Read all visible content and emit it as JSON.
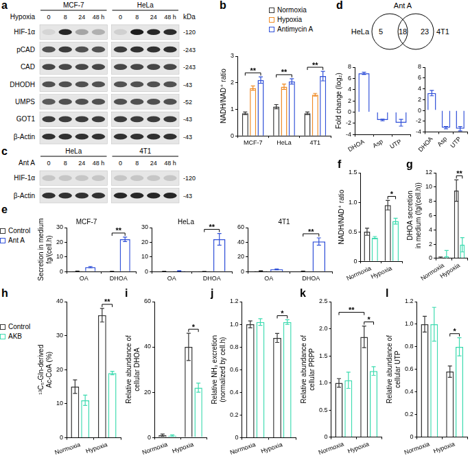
{
  "blots": [
    {
      "panel": "a",
      "condition": "Hypoxia",
      "unit": "kDa",
      "groups": [
        {
          "label": "MCF-7",
          "lanes": [
            "0",
            "8",
            "24",
            "48 h"
          ]
        },
        {
          "label": "HeLa",
          "lanes": [
            "0",
            "8",
            "24",
            "48 h"
          ]
        }
      ],
      "rows": [
        {
          "protein": "HIF-1α",
          "kda": "-120",
          "bands": [
            [
              0.08,
              0.9,
              0.3,
              0.25
            ],
            [
              0.1,
              0.95,
              0.9,
              0.88
            ]
          ]
        },
        {
          "protein": "pCAD",
          "kda": "-243",
          "bands": [
            [
              0.7,
              0.8,
              0.7,
              0.7
            ],
            [
              0.8,
              0.85,
              0.85,
              0.85
            ]
          ]
        },
        {
          "protein": "CAD",
          "kda": "-243",
          "bands": [
            [
              0.75,
              0.75,
              0.75,
              0.75
            ],
            [
              0.75,
              0.75,
              0.75,
              0.75
            ]
          ]
        },
        {
          "protein": "DHODH",
          "kda": "-43",
          "bands": [
            [
              0.7,
              0.7,
              0.7,
              0.7
            ],
            [
              0.7,
              0.7,
              0.7,
              0.7
            ]
          ]
        },
        {
          "protein": "UMPS",
          "kda": "-52",
          "bands": [
            [
              0.65,
              0.7,
              0.7,
              0.7
            ],
            [
              0.7,
              0.7,
              0.7,
              0.7
            ]
          ]
        },
        {
          "protein": "GOT1",
          "kda": "-43",
          "bands": [
            [
              0.8,
              0.8,
              0.8,
              0.8
            ],
            [
              0.8,
              0.8,
              0.8,
              0.8
            ]
          ]
        },
        {
          "protein": "β-Actin",
          "kda": "-43",
          "bands": [
            [
              0.85,
              0.85,
              0.85,
              0.85
            ],
            [
              0.85,
              0.85,
              0.85,
              0.85
            ]
          ]
        }
      ]
    },
    {
      "panel": "c",
      "condition": "Ant A",
      "groups": [
        {
          "label": "HeLa",
          "lanes": [
            "0",
            "8",
            "24",
            "48 h"
          ]
        },
        {
          "label": "4T1",
          "lanes": [
            "0",
            "8",
            "24",
            "48 h"
          ]
        }
      ],
      "rows": [
        {
          "protein": "HIF-1α",
          "kda": "-120",
          "bands": [
            [
              0.15,
              0.15,
              0.15,
              0.15
            ],
            [
              0.15,
              0.15,
              0.15,
              0.15
            ]
          ]
        },
        {
          "protein": "β-Actin",
          "kda": "-43",
          "bands": [
            [
              0.85,
              0.85,
              0.85,
              0.85
            ],
            [
              0.9,
              0.9,
              0.9,
              0.9
            ]
          ]
        }
      ]
    }
  ],
  "venn": {
    "panel": "d",
    "title": "Ant A",
    "left_label": "HeLa",
    "right_label": "4T1",
    "left_only": 5,
    "both": 18,
    "right_only": 23
  },
  "chart_data": [
    {
      "panel": "b",
      "type": "bar",
      "categories": [
        "MCF-7",
        "HeLa",
        "4T1"
      ],
      "y_label": "NADH/NAD⁺ ratio",
      "ylim": [
        0,
        3
      ],
      "yticks": [
        0,
        1,
        2,
        3
      ],
      "grid": false,
      "legend": "top",
      "series": [
        {
          "name": "Normoxia",
          "color": "#333333",
          "values": [
            0.85,
            1.1,
            0.85
          ],
          "errors": [
            0.05,
            0.08,
            0.05
          ]
        },
        {
          "name": "Hypoxia",
          "color": "#f08a24",
          "values": [
            1.8,
            1.85,
            1.55
          ],
          "errors": [
            0.08,
            0.1,
            0.05
          ]
        },
        {
          "name": "Antimycin A",
          "color": "#2f4fd8",
          "values": [
            2.1,
            2.05,
            2.25
          ],
          "errors": [
            0.12,
            0.1,
            0.18
          ]
        }
      ],
      "annotations": [
        {
          "text": "**",
          "category": "MCF-7"
        },
        {
          "text": "**",
          "category": "HeLa"
        },
        {
          "text": "**",
          "category": "4T1"
        }
      ]
    },
    {
      "type": "bar",
      "categories": [
        "DHOA",
        "Asp",
        "UTP"
      ],
      "y_label": "Fold change (log₂)",
      "ylim": [
        -4,
        8
      ],
      "yticks": [
        -4,
        -2,
        0,
        2,
        4,
        6,
        8
      ],
      "grid": false,
      "series": [
        {
          "name": "Ant A",
          "color": "#2f4fd8",
          "values": [
            6.9,
            -1.4,
            -1.9
          ],
          "errors": [
            0.2,
            0.15,
            0.6
          ]
        }
      ]
    },
    {
      "type": "bar",
      "categories": [
        "DHOA",
        "Asp",
        "UTP"
      ],
      "ylim": [
        -4,
        8
      ],
      "yticks": [
        -4,
        -2,
        0,
        2,
        4,
        6,
        8
      ],
      "grid": false,
      "series": [
        {
          "name": "Ant A",
          "color": "#2f4fd8",
          "values": [
            3.2,
            -3.2,
            -3.4
          ],
          "errors": [
            0.5,
            0.2,
            0.4
          ]
        }
      ]
    },
    {
      "panel": "e",
      "type": "bar",
      "title": "MCF-7",
      "categories": [
        "OA",
        "DHOA"
      ],
      "y_label": [
        "Secretion in medium",
        "fg/(cell.h)"
      ],
      "ylim": [
        0,
        30
      ],
      "yticks": [
        0,
        10,
        20,
        30
      ],
      "grid": false,
      "legend": "left",
      "series": [
        {
          "name": "Control",
          "color": "#333333",
          "values": [
            0.3,
            0.2
          ],
          "errors": [
            0.1,
            0.1
          ]
        },
        {
          "name": "Ant A",
          "color": "#2f4fd8",
          "values": [
            3,
            22
          ],
          "errors": [
            0.4,
            1.5
          ]
        }
      ],
      "annotations": [
        {
          "text": "**",
          "category": "DHOA"
        }
      ]
    },
    {
      "type": "bar",
      "title": "HeLa",
      "categories": [
        "OA",
        "DHOA"
      ],
      "ylim": [
        0,
        30
      ],
      "yticks": [
        0,
        10,
        20,
        30
      ],
      "grid": false,
      "series": [
        {
          "name": "Control",
          "color": "#333333",
          "values": [
            0.2,
            0.1
          ],
          "errors": [
            0.1,
            0.05
          ]
        },
        {
          "name": "Ant A",
          "color": "#2f4fd8",
          "values": [
            0.4,
            22
          ],
          "errors": [
            0.2,
            4
          ]
        }
      ],
      "annotations": [
        {
          "text": "**",
          "category": "DHOA"
        }
      ]
    },
    {
      "type": "bar",
      "title": "4T1",
      "categories": [
        "OA",
        "DHOA"
      ],
      "ylim": [
        0,
        60
      ],
      "yticks": [
        0,
        20,
        40,
        60
      ],
      "grid": false,
      "series": [
        {
          "name": "Control",
          "color": "#333333",
          "values": [
            1,
            0.5
          ],
          "errors": [
            0.3,
            0.2
          ]
        },
        {
          "name": "Ant A",
          "color": "#2f4fd8",
          "values": [
            3,
            41
          ],
          "errors": [
            0.6,
            5
          ]
        }
      ],
      "annotations": [
        {
          "text": "**",
          "category": "DHOA"
        }
      ]
    },
    {
      "panel": "f",
      "type": "bar",
      "categories": [
        "Normoxia",
        "Hypoxia"
      ],
      "y_label": "NADH/NAD⁺ ratio",
      "ylim": [
        0,
        1.5
      ],
      "yticks": [
        0,
        0.5,
        {
          "value": 1,
          "label": "1.0"
        },
        1.5
      ],
      "grid": false,
      "series": [
        {
          "name": "Control",
          "color": "#333333",
          "values": [
            0.5,
            0.95
          ],
          "errors": [
            0.06,
            0.08
          ]
        },
        {
          "name": "AKB",
          "color": "#3ddbb0",
          "values": [
            0.4,
            0.68
          ],
          "errors": [
            0.02,
            0.05
          ]
        }
      ],
      "annotations": [
        {
          "text": "*",
          "category": "Hypoxia"
        }
      ]
    },
    {
      "panel": "g",
      "type": "bar",
      "categories": [
        "Normoxia",
        "Hypoxia"
      ],
      "y_label": [
        "DHOA secretion",
        "in medium (fg/(cell.h))"
      ],
      "ylim": [
        0,
        12
      ],
      "yticks": [
        0,
        2,
        4,
        6,
        8,
        10,
        12
      ],
      "grid": false,
      "series": [
        {
          "name": "Control",
          "color": "#333333",
          "values": [
            0.1,
            9.5
          ],
          "errors": [
            0.1,
            1.5
          ]
        },
        {
          "name": "AKB",
          "color": "#3ddbb0",
          "values": [
            0.3,
            1.9
          ],
          "errors": [
            0.8,
            1
          ]
        }
      ],
      "annotations": [
        {
          "text": "**",
          "category": "Hypoxia"
        }
      ]
    },
    {
      "panel": "h",
      "type": "bar",
      "categories": [
        "Normoxia",
        "Hypoxia"
      ],
      "y_label": [
        "¹³C₅-Gln-derived",
        "Ac-CoA (%)"
      ],
      "ylim": [
        0,
        40
      ],
      "yticks": [
        0,
        10,
        20,
        30,
        40
      ],
      "grid": false,
      "legend": "left",
      "series": [
        {
          "name": "Control",
          "color": "#333333",
          "values": [
            15,
            36
          ],
          "errors": [
            2,
            2
          ]
        },
        {
          "name": "AKB",
          "color": "#3ddbb0",
          "values": [
            11,
            19
          ],
          "errors": [
            1.5,
            0.5
          ]
        }
      ],
      "annotations": [
        {
          "text": "**",
          "category": "Hypoxia"
        }
      ]
    },
    {
      "panel": "i",
      "type": "bar",
      "categories": [
        "Normoxia",
        "Hypoxia"
      ],
      "y_label": [
        "Relative abundance of",
        "cellular DHOA"
      ],
      "ylim": [
        0,
        60
      ],
      "yticks": [
        0,
        20,
        40,
        60
      ],
      "grid": false,
      "series": [
        {
          "name": "Control",
          "color": "#333333",
          "values": [
            1,
            40
          ],
          "errors": [
            0.5,
            6
          ]
        },
        {
          "name": "AKB",
          "color": "#3ddbb0",
          "values": [
            0.8,
            22
          ],
          "errors": [
            0.3,
            2
          ]
        }
      ],
      "annotations": [
        {
          "text": "*",
          "category": "Hypoxia"
        }
      ]
    },
    {
      "panel": "j",
      "type": "bar",
      "categories": [
        "Normoxia",
        "Hypoxia"
      ],
      "y_label": [
        "Relative NH₃ excretion",
        "(normalized by cell.h)"
      ],
      "ylim": [
        0,
        1.2
      ],
      "yticks": [
        0,
        0.2,
        0.4,
        0.6,
        0.8,
        {
          "value": 1,
          "label": "1.0"
        },
        1.2
      ],
      "grid": false,
      "series": [
        {
          "name": "Control",
          "color": "#333333",
          "values": [
            1,
            0.88
          ],
          "errors": [
            0.03,
            0.04
          ]
        },
        {
          "name": "AKB",
          "color": "#3ddbb0",
          "values": [
            1.02,
            1.02
          ],
          "errors": [
            0.03,
            0.02
          ]
        }
      ],
      "annotations": [
        {
          "text": "*",
          "category": "Hypoxia"
        }
      ]
    },
    {
      "panel": "k",
      "type": "bar",
      "categories": [
        "Normoxia",
        "Hypoxia"
      ],
      "y_label": [
        "Relative abundance of",
        "cellular PRPP"
      ],
      "ylim": [
        0,
        2.5
      ],
      "yticks": [
        0,
        0.5,
        {
          "value": 1,
          "label": "1.0"
        },
        1.5,
        {
          "value": 2,
          "label": "2.0"
        },
        2.5
      ],
      "grid": false,
      "series": [
        {
          "name": "Control",
          "color": "#333333",
          "values": [
            1,
            1.85
          ],
          "errors": [
            0.08,
            0.2
          ]
        },
        {
          "name": "AKB",
          "color": "#3ddbb0",
          "values": [
            1.05,
            1.22
          ],
          "errors": [
            0.15,
            0.08
          ]
        }
      ],
      "annotations": [
        {
          "text": "*",
          "category": "Hypoxia"
        },
        {
          "text": "**",
          "from": [
            "Normoxia",
            "Control"
          ],
          "to": [
            "Hypoxia",
            "Control"
          ]
        }
      ]
    },
    {
      "panel": "l",
      "type": "bar",
      "categories": [
        "Normoxia",
        "Hypoxia"
      ],
      "y_label": [
        "Relative abundance of",
        "cellular UTP"
      ],
      "ylim": [
        0,
        1.2
      ],
      "yticks": [
        0,
        0.2,
        0.4,
        0.6,
        0.8,
        {
          "value": 1,
          "label": "1.0"
        },
        1.2
      ],
      "grid": false,
      "series": [
        {
          "name": "Control",
          "color": "#333333",
          "values": [
            1,
            0.58
          ],
          "errors": [
            0.07,
            0.05
          ]
        },
        {
          "name": "AKB",
          "color": "#3ddbb0",
          "values": [
            1,
            0.8
          ],
          "errors": [
            0.15,
            0.08
          ]
        }
      ],
      "annotations": [
        {
          "text": "*",
          "category": "Hypoxia"
        }
      ]
    }
  ]
}
